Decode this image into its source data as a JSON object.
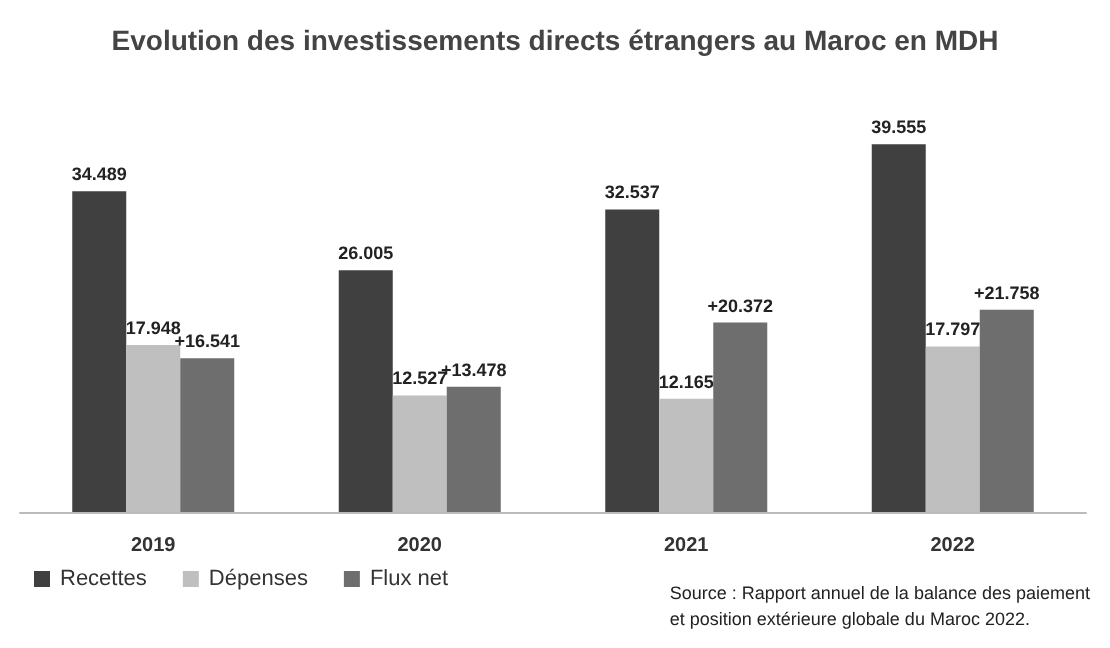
{
  "chart_data": {
    "type": "bar",
    "title": "Evolution des investissements directs étrangers au Maroc en MDH",
    "categories": [
      "2019",
      "2020",
      "2021",
      "2022"
    ],
    "series": [
      {
        "name": "Recettes",
        "color": "#404040",
        "values": [
          34489,
          26005,
          32537,
          39555
        ],
        "value_labels": [
          "34.489",
          "26.005",
          "32.537",
          "39.555"
        ]
      },
      {
        "name": "Dépenses",
        "color": "#bfbfbf",
        "values": [
          17948,
          12527,
          12165,
          17797
        ],
        "value_labels": [
          "17.948",
          "12.527",
          "12.165",
          "17.797"
        ]
      },
      {
        "name": "Flux net",
        "color": "#6e6e6e",
        "values": [
          16541,
          13478,
          20372,
          21758
        ],
        "value_labels": [
          "+16.541",
          "+13.478",
          "+20.372",
          "+21.758"
        ]
      }
    ],
    "annotations": [
      "Source : Rapport annuel de la balance des paiement\net position extérieure globale du Maroc 2022."
    ],
    "legend": "bottom left",
    "grid": false
  }
}
